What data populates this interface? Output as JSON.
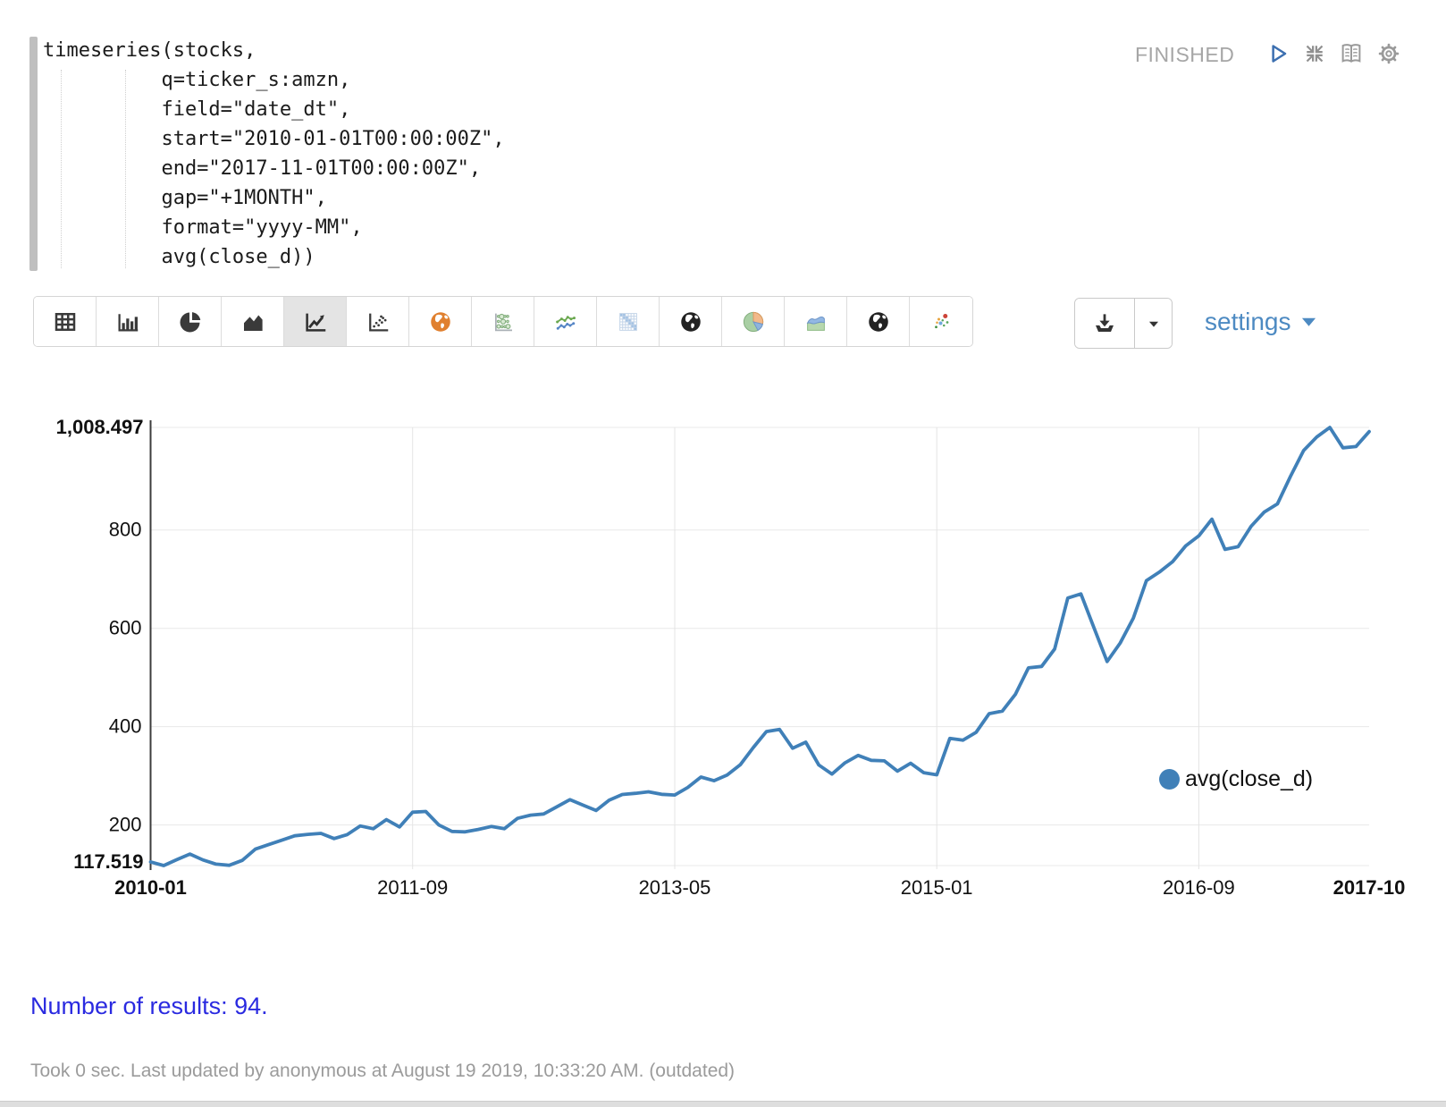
{
  "paragraph": {
    "code_lines": [
      "timeseries(stocks,",
      "          q=ticker_s:amzn,",
      "          field=\"date_dt\",",
      "          start=\"2010-01-01T00:00:00Z\",",
      "          end=\"2017-11-01T00:00:00Z\",",
      "          gap=\"+1MONTH\",",
      "          format=\"yyyy-MM\",",
      "          avg(close_d))"
    ],
    "status": "FINISHED",
    "status_icons": [
      "run-icon",
      "collapse-icon",
      "book-icon",
      "gear-icon"
    ]
  },
  "toolbar": {
    "chart_buttons": [
      {
        "name": "table",
        "selected": false
      },
      {
        "name": "bar-chart",
        "selected": false
      },
      {
        "name": "pie-chart",
        "selected": false
      },
      {
        "name": "area-chart",
        "selected": false
      },
      {
        "name": "line-chart",
        "selected": true
      },
      {
        "name": "scatter-chart",
        "selected": false
      },
      {
        "name": "map-orange-globe",
        "selected": false
      },
      {
        "name": "bubble-grid",
        "selected": false
      },
      {
        "name": "multi-line-points",
        "selected": false
      },
      {
        "name": "heatmap-matrix",
        "selected": false
      },
      {
        "name": "globe-dark",
        "selected": false
      },
      {
        "name": "pie-pastel",
        "selected": false
      },
      {
        "name": "area-pastel",
        "selected": false
      },
      {
        "name": "globe-dark-2",
        "selected": false
      },
      {
        "name": "scatter-color",
        "selected": false
      }
    ],
    "download_icons": [
      "download-icon",
      "caret-down-icon"
    ],
    "settings_label": "settings"
  },
  "results": {
    "text": "Number of results: 94."
  },
  "footer": {
    "text": "Took 0 sec. Last updated by anonymous at August 19 2019, 10:33:20 AM. (outdated)"
  },
  "colors": {
    "series_line": "#4080b8",
    "settings_link": "#4d8ac2",
    "results_text": "#2a2ae0",
    "status_text": "#a6a6a6"
  },
  "chart_data": {
    "type": "line",
    "x_start": "2010-01",
    "x_end": "2017-10",
    "x_gap_months": 1,
    "point_count": 94,
    "series": [
      {
        "name": "avg(close_d)",
        "color": "#4080b8",
        "values": [
          125.0,
          117.519,
          129.5,
          141.0,
          129.0,
          120.5,
          118.0,
          128.0,
          151.0,
          160.0,
          169.0,
          178.0,
          181.0,
          183.0,
          172.5,
          180.5,
          198.0,
          192.5,
          211.0,
          196.0,
          226.0,
          227.5,
          200.0,
          187.0,
          186.0,
          191.0,
          197.0,
          192.5,
          213.5,
          220.0,
          222.5,
          237.0,
          251.5,
          240.5,
          229.5,
          250.5,
          262.0,
          264.5,
          267.5,
          262.5,
          261.0,
          276.5,
          297.5,
          290.0,
          301.5,
          322.5,
          357.5,
          390.0,
          394.5,
          356.0,
          368.5,
          322.0,
          303.5,
          326.5,
          341.5,
          331.5,
          330.5,
          309.5,
          325.5,
          306.5,
          302.0,
          376.0,
          372.5,
          388.5,
          426.5,
          431.5,
          465.5,
          519.5,
          522.5,
          558.0,
          661.5,
          670.0,
          601.0,
          532.5,
          570.0,
          620.5,
          697.0,
          714.5,
          735.5,
          767.5,
          788.0,
          822.0,
          760.5,
          766.0,
          807.5,
          836.5,
          853.0,
          909.0,
          961.5,
          989.0,
          1008.497,
          967.0,
          969.5,
          1000.0
        ]
      }
    ],
    "x_tick_labels": [
      {
        "label": "2010-01",
        "index": 0,
        "bold": true
      },
      {
        "label": "2011-09",
        "index": 20,
        "bold": false
      },
      {
        "label": "2013-05",
        "index": 40,
        "bold": false
      },
      {
        "label": "2015-01",
        "index": 60,
        "bold": false
      },
      {
        "label": "2016-09",
        "index": 80,
        "bold": false
      },
      {
        "label": "2017-10",
        "index": 93,
        "bold": true
      }
    ],
    "y_ticks": [
      200,
      400,
      600,
      800
    ],
    "y_max_label": "1,008.497",
    "y_min_label": "117.519",
    "ylim": [
      117.519,
      1008.497
    ],
    "grid": true,
    "legend_position": "top-right",
    "title": "",
    "xlabel": "",
    "ylabel": ""
  }
}
